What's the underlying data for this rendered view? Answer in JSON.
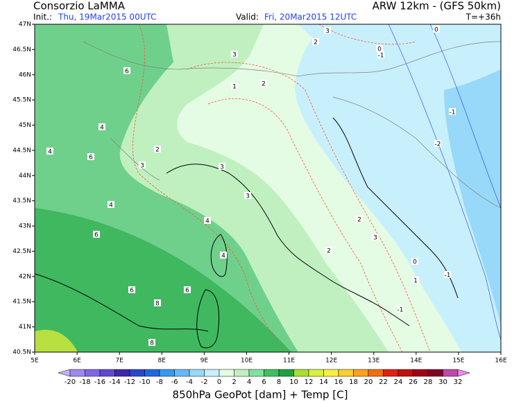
{
  "header": {
    "left_title": "Consorzio LaMMA",
    "right_title": "ARW 12km - (GFS 50km)",
    "init_label": "Init.:",
    "init_time": "Thu, 19Mar2015 00UTC",
    "valid_label": "Valid:",
    "valid_time": "Fri, 20Mar2015 12UTC",
    "lead_time": "T=+36h"
  },
  "map": {
    "lat_labels": [
      "47N",
      "46.5N",
      "46N",
      "45.5N",
      "45N",
      "44.5N",
      "44N",
      "43.5N",
      "43N",
      "42.5N",
      "42N",
      "41.5N",
      "41N",
      "40.5N"
    ],
    "lon_labels": [
      "5E",
      "6E",
      "7E",
      "8E",
      "9E",
      "10E",
      "11E",
      "12E",
      "13E",
      "14E",
      "15E",
      "16E"
    ],
    "contour_labels": [
      6,
      4,
      4,
      6,
      2,
      3,
      4,
      6,
      4,
      4,
      6,
      8,
      6,
      8,
      3,
      3,
      2,
      1,
      2,
      3,
      0,
      -1,
      -1,
      -2,
      2,
      3,
      2,
      0,
      1,
      -1,
      -1,
      0,
      3
    ]
  },
  "colorbar": {
    "ticks": [
      -20,
      -18,
      -16,
      -14,
      -12,
      -10,
      -8,
      -6,
      -4,
      -2,
      0,
      2,
      4,
      6,
      8,
      10,
      12,
      14,
      16,
      18,
      20,
      22,
      24,
      26,
      28,
      30,
      32
    ],
    "colors": [
      "#c8b0f8",
      "#a088f0",
      "#8068e0",
      "#6048d0",
      "#4028a8",
      "#2848c8",
      "#2068e0",
      "#3898f0",
      "#68b8f8",
      "#98d8f8",
      "#c8f0fc",
      "#e4fce4",
      "#c0f0c0",
      "#80e0a0",
      "#40c060",
      "#20a040",
      "#a8e030",
      "#d8f040",
      "#f8f040",
      "#f8d030",
      "#f8a020",
      "#f07010",
      "#e02010",
      "#c01010",
      "#a00018",
      "#800028",
      "#c048a8",
      "#f088f0"
    ],
    "title": "850hPa GeoPot [dam] + Temp [C]"
  }
}
